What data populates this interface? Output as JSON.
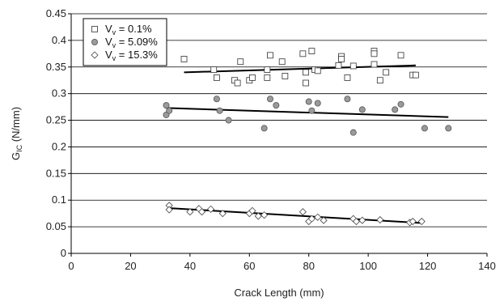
{
  "chart_data": {
    "type": "scatter",
    "xlabel": "Crack Length (mm)",
    "ylabel_main": "G",
    "ylabel_sub": "IC",
    "ylabel_unit": " (N/mm)",
    "xlim": [
      0,
      140
    ],
    "ylim": [
      0,
      0.45
    ],
    "x_ticks": [
      "0",
      "20",
      "40",
      "60",
      "80",
      "100",
      "120",
      "140"
    ],
    "y_ticks": [
      "0",
      "0.05",
      "0.1",
      "0.15",
      "0.2",
      "0.25",
      "0.3",
      "0.35",
      "0.4",
      "0.45"
    ],
    "grid": true,
    "legend_position": "top-left",
    "series": [
      {
        "legend_main": "V",
        "legend_sub": "v",
        "legend_rest": " = 0.1%",
        "marker": "square",
        "points": [
          [
            38,
            0.365
          ],
          [
            48,
            0.345
          ],
          [
            49,
            0.33
          ],
          [
            55,
            0.325
          ],
          [
            56,
            0.32
          ],
          [
            57,
            0.36
          ],
          [
            60,
            0.325
          ],
          [
            61,
            0.33
          ],
          [
            66,
            0.345
          ],
          [
            66,
            0.33
          ],
          [
            67,
            0.372
          ],
          [
            71,
            0.36
          ],
          [
            72,
            0.333
          ],
          [
            78,
            0.375
          ],
          [
            79,
            0.34
          ],
          [
            79,
            0.32
          ],
          [
            81,
            0.38
          ],
          [
            82,
            0.345
          ],
          [
            83,
            0.343
          ],
          [
            90,
            0.353
          ],
          [
            91,
            0.37
          ],
          [
            91,
            0.365
          ],
          [
            93,
            0.33
          ],
          [
            95,
            0.352
          ],
          [
            102,
            0.38
          ],
          [
            102,
            0.375
          ],
          [
            102,
            0.355
          ],
          [
            104,
            0.325
          ],
          [
            106,
            0.34
          ],
          [
            111,
            0.372
          ],
          [
            115,
            0.335
          ],
          [
            116,
            0.335
          ]
        ],
        "trend": [
          [
            38,
            0.34
          ],
          [
            116,
            0.353
          ]
        ]
      },
      {
        "legend_main": "V",
        "legend_sub": "v",
        "legend_rest": " = 5.09%",
        "marker": "circle",
        "points": [
          [
            32,
            0.278
          ],
          [
            32,
            0.26
          ],
          [
            33,
            0.268
          ],
          [
            49,
            0.29
          ],
          [
            50,
            0.268
          ],
          [
            53,
            0.25
          ],
          [
            65,
            0.235
          ],
          [
            67,
            0.29
          ],
          [
            69,
            0.278
          ],
          [
            80,
            0.285
          ],
          [
            81,
            0.268
          ],
          [
            83,
            0.282
          ],
          [
            93,
            0.29
          ],
          [
            95,
            0.227
          ],
          [
            98,
            0.27
          ],
          [
            109,
            0.27
          ],
          [
            111,
            0.28
          ],
          [
            119,
            0.235
          ],
          [
            127,
            0.235
          ]
        ],
        "trend": [
          [
            32,
            0.273
          ],
          [
            127,
            0.256
          ]
        ]
      },
      {
        "legend_main": "V",
        "legend_sub": "v",
        "legend_rest": " = 15.3%",
        "marker": "diamond",
        "points": [
          [
            33,
            0.09
          ],
          [
            33,
            0.082
          ],
          [
            40,
            0.078
          ],
          [
            43,
            0.084
          ],
          [
            44,
            0.078
          ],
          [
            47,
            0.083
          ],
          [
            51,
            0.075
          ],
          [
            60,
            0.075
          ],
          [
            61,
            0.08
          ],
          [
            63,
            0.07
          ],
          [
            65,
            0.072
          ],
          [
            78,
            0.078
          ],
          [
            80,
            0.06
          ],
          [
            81,
            0.065
          ],
          [
            83,
            0.068
          ],
          [
            85,
            0.062
          ],
          [
            95,
            0.065
          ],
          [
            96,
            0.06
          ],
          [
            98,
            0.062
          ],
          [
            104,
            0.063
          ],
          [
            114,
            0.058
          ],
          [
            115,
            0.06
          ],
          [
            118,
            0.06
          ]
        ],
        "trend": [
          [
            33,
            0.085
          ],
          [
            118,
            0.057
          ]
        ]
      }
    ]
  }
}
